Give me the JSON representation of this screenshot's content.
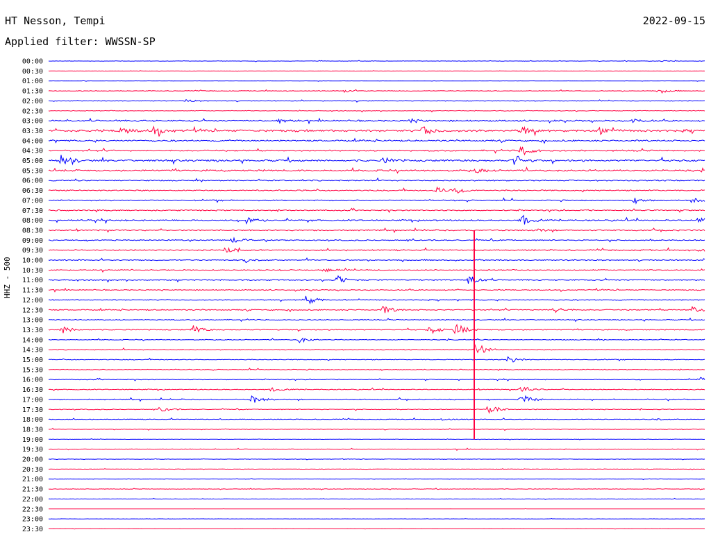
{
  "header": {
    "station": "HT Nesson, Tempi",
    "date": "2022-09-15",
    "filter": "Applied filter: WWSSN-SP"
  },
  "chart_data": {
    "type": "line",
    "title": "HT Nesson, Tempi",
    "subtitle": "Applied filter: WWSSN-SP",
    "ylabel": "HHZ - 500",
    "xlabel": "",
    "rows": [
      "00:00",
      "00:30",
      "01:00",
      "01:30",
      "02:00",
      "02:30",
      "03:00",
      "03:30",
      "04:00",
      "04:30",
      "05:00",
      "05:30",
      "06:00",
      "06:30",
      "07:00",
      "07:30",
      "08:00",
      "08:30",
      "09:00",
      "09:30",
      "10:00",
      "10:30",
      "11:00",
      "11:30",
      "12:00",
      "12:30",
      "13:00",
      "13:30",
      "14:00",
      "14:30",
      "15:00",
      "15:30",
      "16:00",
      "16:30",
      "17:00",
      "17:30",
      "18:00",
      "18:30",
      "19:00",
      "19:30",
      "20:00",
      "20:30",
      "21:00",
      "21:30",
      "22:00",
      "22:30",
      "23:00",
      "23:30"
    ],
    "row_colors": [
      "#0000ff",
      "#ff0040"
    ],
    "grid": false,
    "noise_levels": [
      0.3,
      0.2,
      0.2,
      0.5,
      0.6,
      0.5,
      1.2,
      1.8,
      1.3,
      1.2,
      1.6,
      1.4,
      1.0,
      1.0,
      1.0,
      1.0,
      1.2,
      1.0,
      0.9,
      1.0,
      0.9,
      0.9,
      0.9,
      0.8,
      0.8,
      0.9,
      0.8,
      0.8,
      0.6,
      0.7,
      0.6,
      0.6,
      0.6,
      0.7,
      0.8,
      0.6,
      0.6,
      0.5,
      0.3,
      0.5,
      0.3,
      0.3,
      0.3,
      0.4,
      0.3,
      0.1,
      0.2,
      0.1
    ],
    "bursts": [
      {
        "row": 0,
        "x": 0.93,
        "amp": 0.3
      },
      {
        "row": 3,
        "x": 0.45,
        "amp": 0.5
      },
      {
        "row": 3,
        "x": 0.93,
        "amp": 0.7
      },
      {
        "row": 4,
        "x": 0.21,
        "amp": 0.4
      },
      {
        "row": 6,
        "x": 0.35,
        "amp": 0.7
      },
      {
        "row": 6,
        "x": 0.55,
        "amp": 0.6
      },
      {
        "row": 6,
        "x": 0.89,
        "amp": 0.6
      },
      {
        "row": 7,
        "x": 0.11,
        "amp": 1.0
      },
      {
        "row": 7,
        "x": 0.16,
        "amp": 1.4
      },
      {
        "row": 7,
        "x": 0.57,
        "amp": 1.4
      },
      {
        "row": 7,
        "x": 0.72,
        "amp": 1.3
      },
      {
        "row": 7,
        "x": 0.84,
        "amp": 0.9
      },
      {
        "row": 9,
        "x": 0.72,
        "amp": 1.6
      },
      {
        "row": 10,
        "x": 0.02,
        "amp": 2.0
      },
      {
        "row": 10,
        "x": 0.51,
        "amp": 0.7
      },
      {
        "row": 10,
        "x": 0.71,
        "amp": 1.6
      },
      {
        "row": 11,
        "x": 0.65,
        "amp": 0.6
      },
      {
        "row": 13,
        "x": 0.59,
        "amp": 1.0
      },
      {
        "row": 13,
        "x": 0.62,
        "amp": 1.1
      },
      {
        "row": 14,
        "x": 0.89,
        "amp": 0.7
      },
      {
        "row": 14,
        "x": 0.98,
        "amp": 0.9
      },
      {
        "row": 16,
        "x": 0.3,
        "amp": 1.6
      },
      {
        "row": 16,
        "x": 0.72,
        "amp": 1.6
      },
      {
        "row": 16,
        "x": 0.99,
        "amp": 1.2
      },
      {
        "row": 17,
        "x": 0.74,
        "amp": 0.6
      },
      {
        "row": 18,
        "x": 0.28,
        "amp": 0.9
      },
      {
        "row": 19,
        "x": 0.27,
        "amp": 1.0
      },
      {
        "row": 19,
        "x": 0.99,
        "amp": 0.9
      },
      {
        "row": 20,
        "x": 0.3,
        "amp": 0.7
      },
      {
        "row": 21,
        "x": 0.42,
        "amp": 0.5
      },
      {
        "row": 22,
        "x": 0.44,
        "amp": 1.3
      },
      {
        "row": 22,
        "x": 0.64,
        "amp": 1.6
      },
      {
        "row": 24,
        "x": 0.39,
        "amp": 1.8
      },
      {
        "row": 25,
        "x": 0.51,
        "amp": 1.2
      },
      {
        "row": 25,
        "x": 0.77,
        "amp": 0.8
      },
      {
        "row": 25,
        "x": 0.98,
        "amp": 0.9
      },
      {
        "row": 27,
        "x": 0.02,
        "amp": 1.1
      },
      {
        "row": 27,
        "x": 0.22,
        "amp": 1.4
      },
      {
        "row": 27,
        "x": 0.58,
        "amp": 1.4
      },
      {
        "row": 27,
        "x": 0.62,
        "amp": 2.0
      },
      {
        "row": 28,
        "x": 0.38,
        "amp": 1.0
      },
      {
        "row": 29,
        "x": 0.65,
        "amp": 2.6
      },
      {
        "row": 30,
        "x": 0.7,
        "amp": 1.3
      },
      {
        "row": 32,
        "x": 0.99,
        "amp": 0.7
      },
      {
        "row": 33,
        "x": 0.34,
        "amp": 0.7
      },
      {
        "row": 33,
        "x": 0.72,
        "amp": 1.1
      },
      {
        "row": 34,
        "x": 0.31,
        "amp": 1.1
      },
      {
        "row": 34,
        "x": 0.72,
        "amp": 1.6
      },
      {
        "row": 35,
        "x": 0.17,
        "amp": 0.8
      },
      {
        "row": 35,
        "x": 0.67,
        "amp": 1.8
      },
      {
        "row": 36,
        "x": 0.6,
        "amp": 0.5
      },
      {
        "row": 36,
        "x": 0.92,
        "amp": 0.5
      }
    ],
    "spike": {
      "x": 0.648,
      "from_row": 17,
      "to_row": 38
    }
  }
}
